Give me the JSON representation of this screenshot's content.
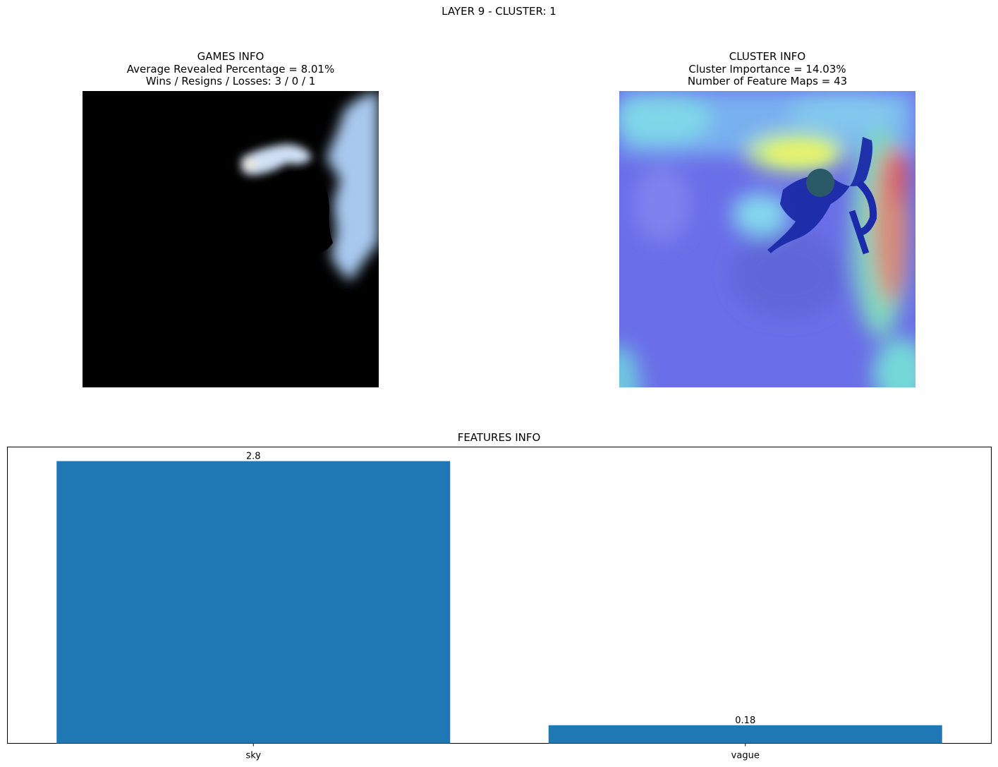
{
  "figure": {
    "suptitle": "LAYER 9 - CLUSTER: 1"
  },
  "games_info": {
    "title": "GAMES INFO",
    "line1": "Average Revealed Percentage = 8.01%",
    "line2": "Wins / Resigns / Losses: 3 / 0 / 1"
  },
  "cluster_info": {
    "title": "CLUSTER INFO",
    "line1": "Cluster Importance = 14.03%",
    "line2": "Number of Feature Maps = 43"
  },
  "features_info": {
    "title": "FEATURES INFO"
  },
  "chart_data": {
    "type": "bar",
    "title": "FEATURES INFO",
    "categories": [
      "sky",
      "vague"
    ],
    "values": [
      2.8,
      0.18
    ],
    "data_labels": [
      "2.8",
      "0.18"
    ],
    "xlabel": "",
    "ylabel": "",
    "ylim": [
      0,
      2.94
    ],
    "bar_color": "#1f77b4",
    "grid": false,
    "y_ticks_visible": false
  },
  "images": {
    "left_description_icon": "masked-revealed-image",
    "right_description_icon": "heatmap-overlay-image"
  }
}
